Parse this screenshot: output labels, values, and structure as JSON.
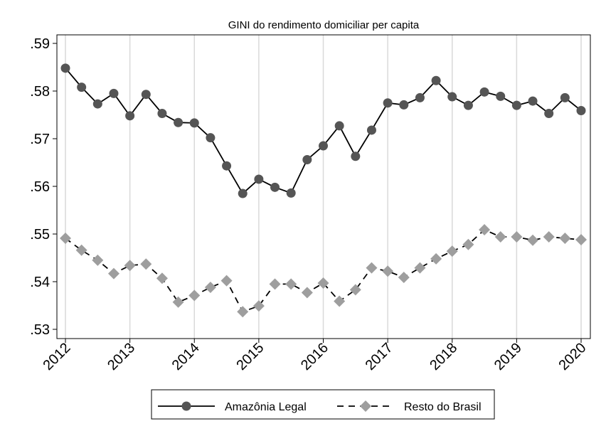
{
  "chart_data": {
    "type": "line",
    "title": "GINI do rendimento domiciliar per capita",
    "xlabel": "",
    "ylabel": "",
    "xlim": [
      2012,
      2020
    ],
    "ylim": [
      0.53,
      0.59
    ],
    "y_ticks": [
      ".53",
      ".54",
      ".55",
      ".56",
      ".57",
      ".58",
      ".59"
    ],
    "y_tick_values": [
      0.53,
      0.54,
      0.55,
      0.56,
      0.57,
      0.58,
      0.59
    ],
    "x_ticks": [
      "2012",
      "2013",
      "2014",
      "2015",
      "2016",
      "2017",
      "2018",
      "2019",
      "2020"
    ],
    "x_tick_values": [
      2012,
      2013,
      2014,
      2015,
      2016,
      2017,
      2018,
      2019,
      2020
    ],
    "grid": "vertical",
    "legend_position": "bottom",
    "series": [
      {
        "name": "Amazônia Legal",
        "color": "#555555",
        "marker": "circle",
        "line_style": "solid",
        "x": [
          2012,
          2012.25,
          2012.5,
          2012.75,
          2013,
          2013.25,
          2013.5,
          2013.75,
          2014,
          2014.25,
          2014.5,
          2014.75,
          2015,
          2015.25,
          2015.5,
          2015.75,
          2016,
          2016.25,
          2016.5,
          2016.75,
          2017,
          2017.25,
          2017.5,
          2017.75,
          2018,
          2018.25,
          2018.5,
          2018.75,
          2019,
          2019.25,
          2019.5,
          2019.75,
          2020
        ],
        "values": [
          0.5848,
          0.5808,
          0.5773,
          0.5795,
          0.5748,
          0.5793,
          0.5753,
          0.5734,
          0.5733,
          0.5702,
          0.5643,
          0.5585,
          0.5615,
          0.5598,
          0.5586,
          0.5656,
          0.5685,
          0.5727,
          0.5663,
          0.5718,
          0.5775,
          0.5771,
          0.5786,
          0.5822,
          0.5788,
          0.577,
          0.5798,
          0.5789,
          0.577,
          0.5779,
          0.5753,
          0.5786,
          0.5759
        ]
      },
      {
        "name": "Resto do Brasil",
        "color": "#9e9e9e",
        "marker": "diamond",
        "line_style": "dashed",
        "x": [
          2012,
          2012.25,
          2012.5,
          2012.75,
          2013,
          2013.25,
          2013.5,
          2013.75,
          2014,
          2014.25,
          2014.5,
          2014.75,
          2015,
          2015.25,
          2015.5,
          2015.75,
          2016,
          2016.25,
          2016.5,
          2016.75,
          2017,
          2017.25,
          2017.5,
          2017.75,
          2018,
          2018.25,
          2018.5,
          2018.75,
          2019,
          2019.25,
          2019.5,
          2019.75,
          2020
        ],
        "values": [
          0.5491,
          0.5466,
          0.5445,
          0.5417,
          0.5434,
          0.5437,
          0.5407,
          0.5357,
          0.5371,
          0.5388,
          0.5402,
          0.5337,
          0.5349,
          0.5395,
          0.5395,
          0.5377,
          0.5397,
          0.5359,
          0.5383,
          0.5429,
          0.5422,
          0.5409,
          0.5429,
          0.5448,
          0.5464,
          0.5478,
          0.5509,
          0.5494,
          0.5494,
          0.5487,
          0.5494,
          0.5491,
          0.5488
        ]
      }
    ]
  }
}
